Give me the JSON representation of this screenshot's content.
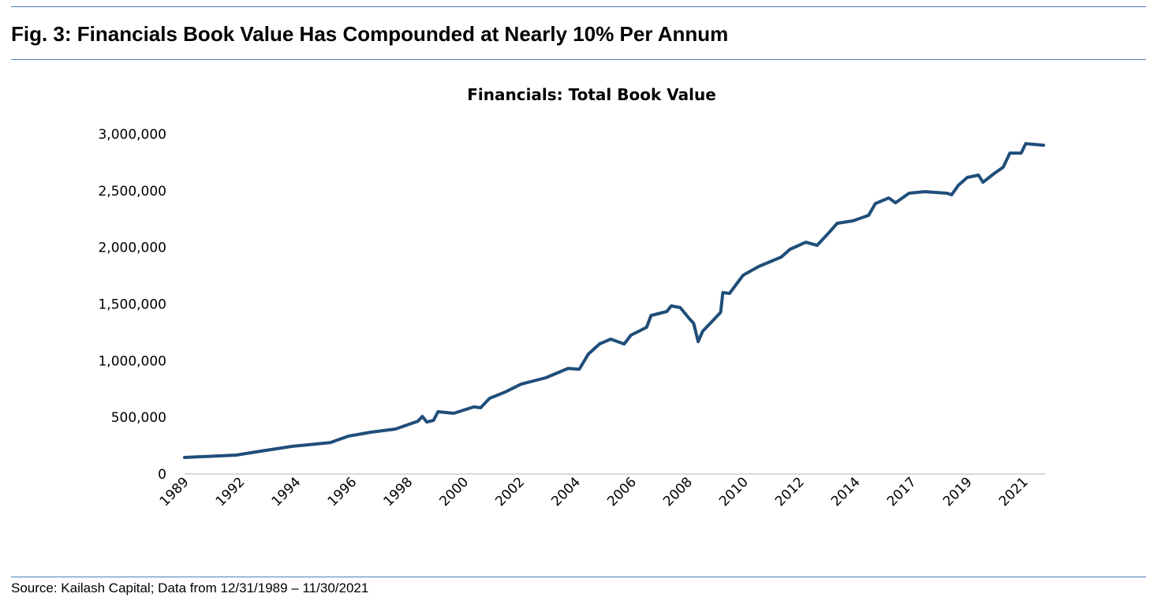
{
  "header": {
    "title": "Fig. 3: Financials Book Value Has Compounded at Nearly 10% Per Annum"
  },
  "footer": {
    "source": "Source: Kailash Capital; Data from 12/31/1989 – 11/30/2021"
  },
  "colors": {
    "rule": "#4a7ebb",
    "line": "#1f4e79",
    "axis": "#d9d9d9"
  },
  "chart_data": {
    "type": "line",
    "title": "Financials: Total Book Value",
    "xlabel": "",
    "ylabel": "",
    "ylim": [
      0,
      3000000
    ],
    "yticks": [
      0,
      500000,
      1000000,
      1500000,
      2000000,
      2500000,
      3000000
    ],
    "ytick_labels": [
      "0",
      "500,000",
      "1,000,000",
      "1,500,000",
      "2,000,000",
      "2,500,000",
      "3,000,000"
    ],
    "xrange": [
      "1989-12",
      "2021-11"
    ],
    "xtick_labels": [
      "1989",
      "1992",
      "1994",
      "1996",
      "1998",
      "2000",
      "2002",
      "2004",
      "2006",
      "2008",
      "2010",
      "2012",
      "2014",
      "2017",
      "2019",
      "2021"
    ],
    "grid": false,
    "legend": "none",
    "series": [
      {
        "points": [
          [
            "1989-12",
            146000
          ],
          [
            "1991-11",
            167000
          ],
          [
            "1992-10",
            202000
          ],
          [
            "1993-12",
            244000
          ],
          [
            "1995-05",
            278000
          ],
          [
            "1996-01",
            334000
          ],
          [
            "1996-11",
            369000
          ],
          [
            "1997-10",
            397000
          ],
          [
            "1998-08",
            466000
          ],
          [
            "1998-10",
            508000
          ],
          [
            "1998-12",
            459000
          ],
          [
            "1999-03",
            473000
          ],
          [
            "1999-05",
            550000
          ],
          [
            "1999-12",
            536000
          ],
          [
            "2000-09",
            592000
          ],
          [
            "2000-12",
            585000
          ],
          [
            "2001-04",
            668000
          ],
          [
            "2001-11",
            724000
          ],
          [
            "2002-06",
            793000
          ],
          [
            "2003-05",
            849000
          ],
          [
            "2004-03",
            932000
          ],
          [
            "2004-08",
            925000
          ],
          [
            "2004-12",
            1058000
          ],
          [
            "2005-05",
            1148000
          ],
          [
            "2005-10",
            1190000
          ],
          [
            "2006-04",
            1148000
          ],
          [
            "2006-07",
            1225000
          ],
          [
            "2007-02",
            1295000
          ],
          [
            "2007-04",
            1399000
          ],
          [
            "2007-11",
            1434000
          ],
          [
            "2008-01",
            1483000
          ],
          [
            "2008-05",
            1469000
          ],
          [
            "2008-09",
            1372000
          ],
          [
            "2008-11",
            1330000
          ],
          [
            "2009-01",
            1169000
          ],
          [
            "2009-03",
            1260000
          ],
          [
            "2009-07",
            1343000
          ],
          [
            "2009-11",
            1427000
          ],
          [
            "2009-12",
            1601000
          ],
          [
            "2010-03",
            1594000
          ],
          [
            "2010-09",
            1754000
          ],
          [
            "2011-04",
            1831000
          ],
          [
            "2012-02",
            1914000
          ],
          [
            "2012-06",
            1984000
          ],
          [
            "2013-01",
            2046000
          ],
          [
            "2013-06",
            2018000
          ],
          [
            "2013-11",
            2123000
          ],
          [
            "2014-03",
            2213000
          ],
          [
            "2014-10",
            2234000
          ],
          [
            "2015-05",
            2283000
          ],
          [
            "2015-08",
            2387000
          ],
          [
            "2016-02",
            2436000
          ],
          [
            "2016-05",
            2394000
          ],
          [
            "2016-11",
            2478000
          ],
          [
            "2017-06",
            2492000
          ],
          [
            "2018-04",
            2478000
          ],
          [
            "2018-06",
            2464000
          ],
          [
            "2018-09",
            2548000
          ],
          [
            "2019-01",
            2617000
          ],
          [
            "2019-06",
            2638000
          ],
          [
            "2019-08",
            2575000
          ],
          [
            "2020-01",
            2652000
          ],
          [
            "2020-05",
            2708000
          ],
          [
            "2020-08",
            2832000
          ],
          [
            "2021-01",
            2832000
          ],
          [
            "2021-03",
            2916000
          ],
          [
            "2021-11",
            2902000
          ]
        ]
      }
    ]
  }
}
